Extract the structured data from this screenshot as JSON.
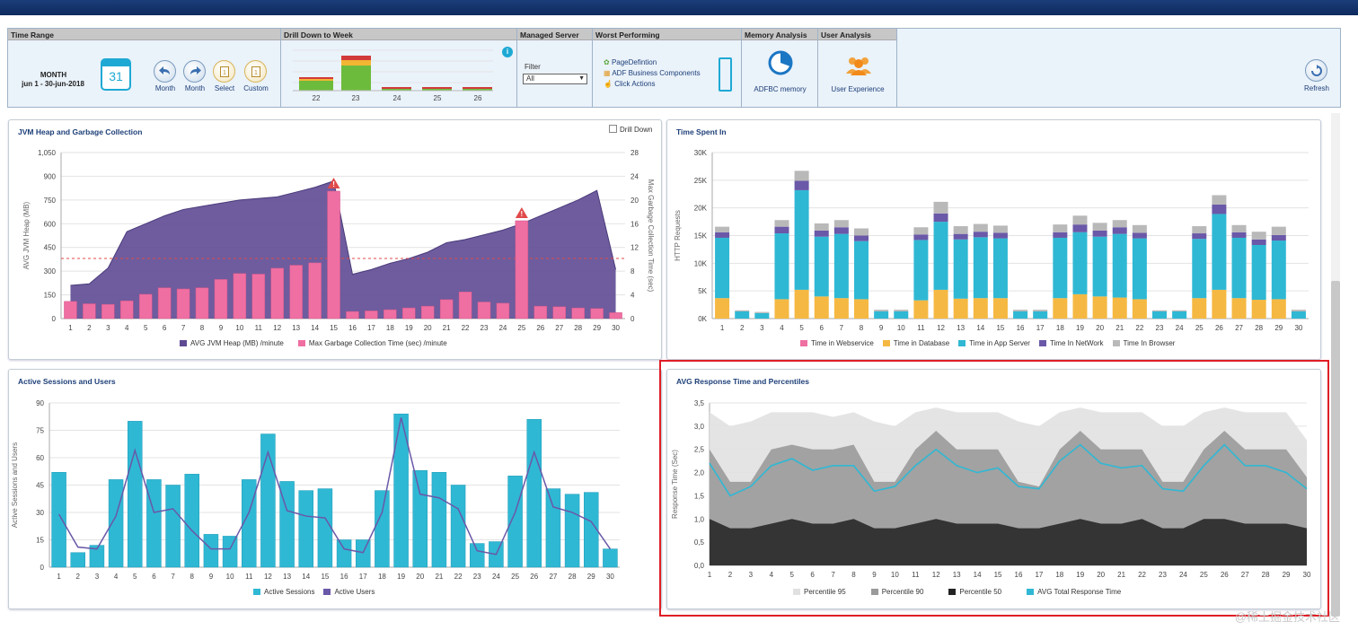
{
  "toolbar": {
    "time_range": {
      "header": "Time Range",
      "period": "MONTH",
      "dates": "jun 1 - 30-jun-2018",
      "calendar_day": "31",
      "buttons": [
        {
          "label": "Month",
          "icon": "arrow-left-icon"
        },
        {
          "label": "Month",
          "icon": "arrow-right-icon"
        },
        {
          "label": "Select",
          "icon": "calendar-select-icon"
        },
        {
          "label": "Custom",
          "icon": "calendar-custom-icon"
        }
      ]
    },
    "drill_down": {
      "header": "Drill Down to Week",
      "weeks": [
        "22",
        "23",
        "24",
        "25",
        "26"
      ],
      "info_icon": "info-icon"
    },
    "managed_server": {
      "header": "Managed Server",
      "filter_label": "Filter",
      "filter_value": "All"
    },
    "worst_performing": {
      "header": "Worst Performing",
      "items": [
        "PageDefintion",
        "ADF Business Components",
        "Click Actions"
      ]
    },
    "memory_analysis": {
      "header": "Memory Analysis",
      "label": "ADFBC memory"
    },
    "user_analysis": {
      "header": "User Analysis",
      "label": "User Experience"
    },
    "refresh": {
      "label": "Refresh"
    }
  },
  "panels": {
    "jvm": {
      "title": "JVM Heap and Garbage Collection",
      "drilldown_label": "Drill Down"
    },
    "time": {
      "title": "Time Spent In"
    },
    "sessions": {
      "title": "Active Sessions and Users"
    },
    "response": {
      "title": "AVG Response Time and Percentiles"
    }
  },
  "colors": {
    "purple": "#5e4a93",
    "pink": "#ef6fa2",
    "cyan": "#2fb8d4",
    "orange": "#f5b842",
    "navy": "#6a58a8",
    "grey": "#b9b9b9",
    "red_box": "#e01e26"
  },
  "chart_data": [
    {
      "type": "bar",
      "title": "JVM Heap and Garbage Collection",
      "x": [
        1,
        2,
        3,
        4,
        5,
        6,
        7,
        8,
        9,
        10,
        11,
        12,
        13,
        14,
        15,
        16,
        17,
        18,
        19,
        20,
        21,
        22,
        23,
        24,
        25,
        26,
        27,
        28,
        29,
        30
      ],
      "y_ticks": [
        "0",
        "150",
        "300",
        "450",
        "600",
        "750",
        "900",
        "1,050"
      ],
      "y2_ticks": [
        "0",
        "4",
        "8",
        "12",
        "16",
        "20",
        "24",
        "28"
      ],
      "ylabel": "AVG JVM Heap (MB)",
      "y2label": "Max Garbage Collection Time (sec)",
      "ylim": [
        0,
        1050
      ],
      "y2lim": [
        0,
        28
      ],
      "series": [
        {
          "name": "AVG JVM Heap (MB) /minute",
          "type": "area",
          "axis": "left",
          "values": [
            210,
            220,
            320,
            550,
            600,
            650,
            690,
            710,
            730,
            750,
            760,
            770,
            800,
            830,
            870,
            280,
            310,
            350,
            380,
            420,
            480,
            500,
            530,
            560,
            600,
            650,
            700,
            750,
            810,
            310
          ]
        },
        {
          "name": "Max Garbage Collection Time (sec) /minute",
          "type": "bar",
          "axis": "right",
          "values": [
            2.9,
            2.5,
            2.4,
            3.0,
            4.1,
            5.2,
            5.0,
            5.2,
            6.6,
            7.6,
            7.5,
            8.5,
            9.0,
            9.4,
            21.5,
            1.2,
            1.3,
            1.5,
            1.8,
            2.1,
            3.2,
            4.5,
            2.8,
            2.6,
            16.5,
            2.1,
            2.0,
            1.8,
            1.7,
            1.0
          ]
        }
      ],
      "reference_line": 380,
      "alerts_at": [
        15,
        25
      ]
    },
    {
      "type": "bar",
      "title": "Time Spent In",
      "x": [
        1,
        2,
        3,
        4,
        5,
        6,
        7,
        8,
        9,
        10,
        11,
        12,
        13,
        14,
        15,
        16,
        17,
        18,
        19,
        20,
        21,
        22,
        23,
        24,
        25,
        26,
        27,
        28,
        29,
        30
      ],
      "ylabel": "HTTP Requests",
      "y_ticks": [
        "0K",
        "5K",
        "10K",
        "15K",
        "20K",
        "25K",
        "30K"
      ],
      "ylim": [
        0,
        30000
      ],
      "series": [
        {
          "name": "Time in Webservice",
          "values": [
            0,
            0,
            0,
            0,
            0,
            0,
            0,
            0,
            0,
            0,
            0,
            0,
            0,
            0,
            0,
            0,
            0,
            0,
            0,
            0,
            0,
            0,
            0,
            0,
            0,
            0,
            0,
            0,
            0,
            0
          ]
        },
        {
          "name": "Time in Database",
          "values": [
            3700,
            0,
            0,
            3500,
            5200,
            4000,
            3700,
            3500,
            0,
            0,
            3300,
            5200,
            3600,
            3700,
            3700,
            0,
            0,
            3700,
            4400,
            4000,
            3800,
            3500,
            0,
            0,
            3700,
            5200,
            3700,
            3400,
            3500,
            0
          ]
        },
        {
          "name": "Time in App Server",
          "values": [
            10900,
            1300,
            1000,
            11900,
            18000,
            10800,
            11600,
            10500,
            1300,
            1300,
            10900,
            12300,
            10700,
            11000,
            10800,
            1300,
            1300,
            10900,
            11200,
            10800,
            11500,
            11000,
            1300,
            1300,
            10700,
            13700,
            10900,
            9900,
            10600,
            1300
          ]
        },
        {
          "name": "Time In NetWork",
          "values": [
            1000,
            0,
            0,
            1200,
            1700,
            1100,
            1200,
            1000,
            0,
            0,
            1000,
            1500,
            1000,
            1000,
            1000,
            0,
            0,
            1000,
            1400,
            1100,
            1200,
            1000,
            0,
            0,
            1000,
            1700,
            1000,
            1000,
            1000,
            0
          ]
        },
        {
          "name": "Time In Browser",
          "values": [
            1000,
            200,
            200,
            1200,
            1800,
            1300,
            1300,
            1300,
            300,
            300,
            1300,
            2100,
            1400,
            1400,
            1300,
            300,
            300,
            1400,
            1600,
            1400,
            1300,
            1400,
            200,
            200,
            1300,
            1700,
            1300,
            1400,
            1500,
            300
          ]
        }
      ]
    },
    {
      "type": "bar",
      "title": "Active Sessions and Users",
      "x": [
        1,
        2,
        3,
        4,
        5,
        6,
        7,
        8,
        9,
        10,
        11,
        12,
        13,
        14,
        15,
        16,
        17,
        18,
        19,
        20,
        21,
        22,
        23,
        24,
        25,
        26,
        27,
        28,
        29,
        30
      ],
      "ylabel": "Active Sessions and Users",
      "y_ticks": [
        "0",
        "15",
        "30",
        "45",
        "60",
        "75",
        "90"
      ],
      "ylim": [
        0,
        90
      ],
      "series": [
        {
          "name": "Active Sessions",
          "type": "bar",
          "values": [
            52,
            8,
            12,
            48,
            80,
            48,
            45,
            51,
            18,
            17,
            48,
            73,
            47,
            42,
            43,
            15,
            15,
            42,
            84,
            53,
            52,
            45,
            13,
            14,
            50,
            81,
            43,
            40,
            41,
            10
          ]
        },
        {
          "name": "Active Users",
          "type": "line",
          "values": [
            29,
            11,
            10,
            28,
            64,
            30,
            32,
            20,
            10,
            10,
            30,
            63,
            31,
            28,
            27,
            10,
            8,
            30,
            82,
            40,
            38,
            32,
            9,
            7,
            30,
            63,
            33,
            30,
            25,
            10
          ]
        }
      ]
    },
    {
      "type": "area",
      "title": "AVG Response Time and Percentiles",
      "x": [
        1,
        2,
        3,
        4,
        5,
        6,
        7,
        8,
        9,
        10,
        11,
        12,
        13,
        14,
        15,
        16,
        17,
        18,
        19,
        20,
        21,
        22,
        23,
        24,
        25,
        26,
        27,
        28,
        29,
        30
      ],
      "ylabel": "Response Time (Sec)",
      "y_ticks": [
        "0,0",
        "0,5",
        "1,0",
        "1,5",
        "2,0",
        "2,5",
        "3,0",
        "3,5"
      ],
      "ylim": [
        0,
        3.5
      ],
      "series": [
        {
          "name": "Percentile 95",
          "values": [
            3.3,
            3.0,
            3.1,
            3.3,
            3.3,
            3.3,
            3.2,
            3.3,
            3.1,
            3.0,
            3.3,
            3.4,
            3.3,
            3.3,
            3.3,
            3.1,
            3.0,
            3.3,
            3.4,
            3.3,
            3.3,
            3.3,
            3.0,
            3.0,
            3.3,
            3.4,
            3.3,
            3.3,
            3.3,
            2.7
          ]
        },
        {
          "name": "Percentile 90",
          "values": [
            2.5,
            1.8,
            1.8,
            2.5,
            2.6,
            2.5,
            2.5,
            2.6,
            1.8,
            1.8,
            2.5,
            2.9,
            2.5,
            2.5,
            2.5,
            1.8,
            1.7,
            2.5,
            2.9,
            2.5,
            2.5,
            2.5,
            1.8,
            1.8,
            2.5,
            2.9,
            2.5,
            2.5,
            2.5,
            1.9
          ]
        },
        {
          "name": "Percentile 50",
          "values": [
            1.0,
            0.8,
            0.8,
            0.9,
            1.0,
            0.9,
            0.9,
            1.0,
            0.8,
            0.8,
            0.9,
            1.0,
            0.9,
            0.9,
            0.9,
            0.8,
            0.8,
            0.9,
            1.0,
            0.9,
            0.9,
            1.0,
            0.8,
            0.8,
            1.0,
            1.0,
            0.9,
            0.9,
            0.9,
            0.8
          ]
        },
        {
          "name": "AVG Total Response Time",
          "type": "line",
          "values": [
            2.2,
            1.5,
            1.7,
            2.15,
            2.3,
            2.05,
            2.15,
            2.15,
            1.6,
            1.7,
            2.15,
            2.5,
            2.15,
            2.0,
            2.1,
            1.7,
            1.65,
            2.25,
            2.6,
            2.2,
            2.1,
            2.15,
            1.65,
            1.6,
            2.15,
            2.6,
            2.15,
            2.15,
            2.0,
            1.65
          ]
        }
      ]
    }
  ],
  "watermark": "@稀土掘金技术社区"
}
